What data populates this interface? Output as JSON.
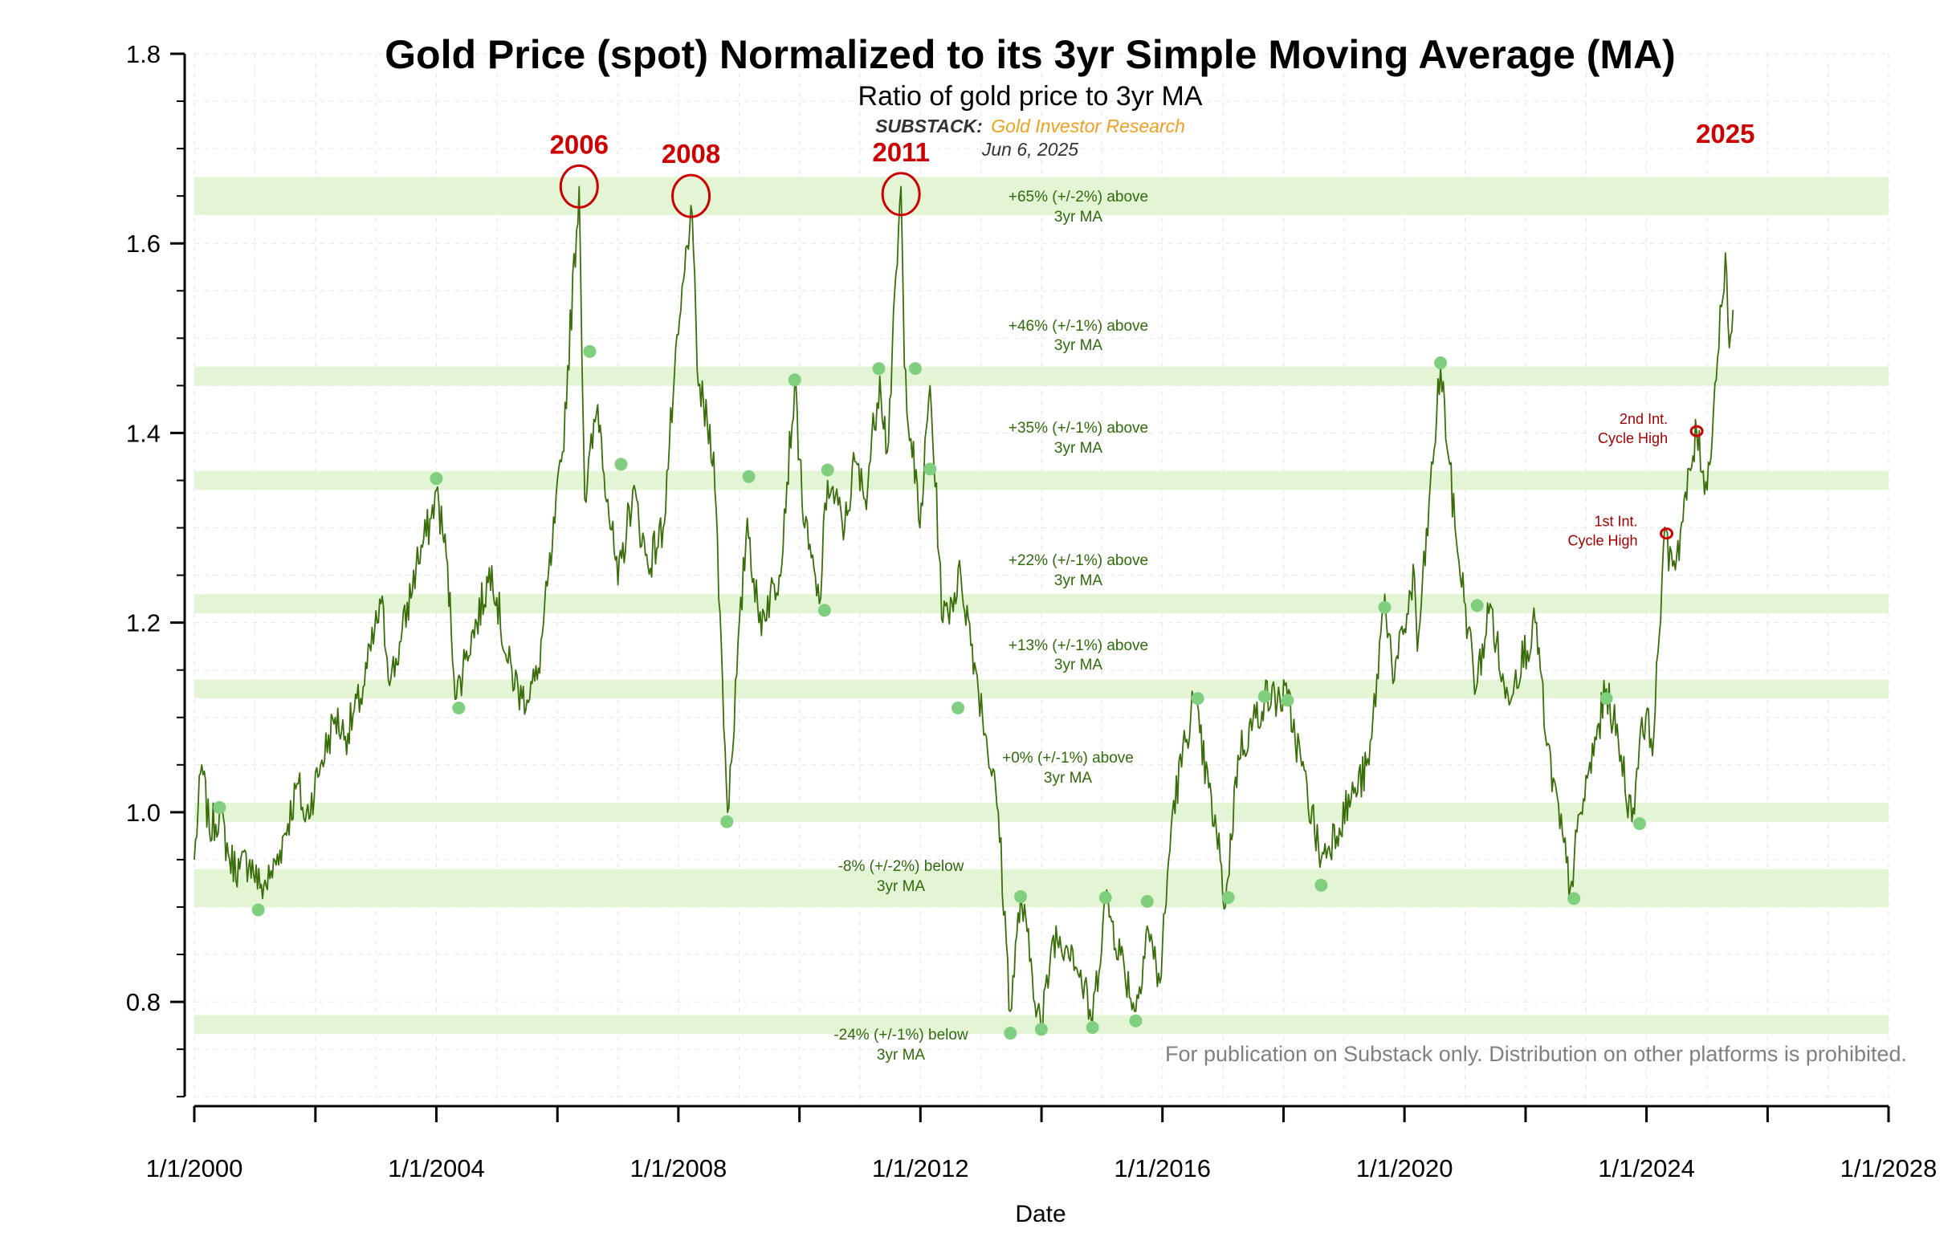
{
  "chart_data": {
    "type": "line",
    "title": "Gold Price (spot) Normalized to its 3yr Simple Moving Average (MA)",
    "subtitle": "Ratio of gold price to 3yr MA",
    "source_label": "SUBSTACK:",
    "source_name": "Gold Investor Research",
    "date": "Jun 6, 2025",
    "xlabel": "Date",
    "ylabel": "",
    "xlim": [
      "2000-01-01",
      "2028-01-01"
    ],
    "ylim": [
      0.69,
      1.8
    ],
    "x_ticks": [
      "1/1/2000",
      "1/1/2004",
      "1/1/2008",
      "1/1/2012",
      "1/1/2016",
      "1/1/2020",
      "1/1/2024",
      "1/1/2028"
    ],
    "y_ticks": [
      "0.8",
      "1.0",
      "1.2",
      "1.4",
      "1.6",
      "1.8"
    ],
    "grid": true,
    "line_color": "#3a6e0a",
    "band_color": "#e4f5d6",
    "marker_color": "#7fcf7f",
    "annotation_color": "#cc0000",
    "series": [
      {
        "points": [
          [
            "2000-01-01",
            0.95
          ],
          [
            "2000-02-15",
            1.05
          ],
          [
            "2000-04-01",
            0.98
          ],
          [
            "2000-06-01",
            1.0
          ],
          [
            "2000-08-01",
            0.95
          ],
          [
            "2000-10-01",
            0.94
          ],
          [
            "2000-12-01",
            0.95
          ],
          [
            "2001-02-01",
            0.92
          ],
          [
            "2001-04-01",
            0.93
          ],
          [
            "2001-06-01",
            0.96
          ],
          [
            "2001-09-20",
            1.03
          ],
          [
            "2001-11-01",
            0.99
          ],
          [
            "2002-02-01",
            1.05
          ],
          [
            "2002-05-01",
            1.1
          ],
          [
            "2002-07-01",
            1.08
          ],
          [
            "2002-10-01",
            1.12
          ],
          [
            "2003-02-01",
            1.22
          ],
          [
            "2003-04-01",
            1.14
          ],
          [
            "2003-06-01",
            1.18
          ],
          [
            "2003-09-01",
            1.26
          ],
          [
            "2003-12-01",
            1.31
          ],
          [
            "2004-01-01",
            1.34
          ],
          [
            "2004-03-01",
            1.27
          ],
          [
            "2004-05-01",
            1.12
          ],
          [
            "2004-07-01",
            1.17
          ],
          [
            "2004-09-01",
            1.2
          ],
          [
            "2004-12-01",
            1.26
          ],
          [
            "2005-03-01",
            1.16
          ],
          [
            "2005-06-01",
            1.12
          ],
          [
            "2005-09-01",
            1.14
          ],
          [
            "2005-12-01",
            1.28
          ],
          [
            "2006-02-01",
            1.38
          ],
          [
            "2006-05-12",
            1.66
          ],
          [
            "2006-06-15",
            1.33
          ],
          [
            "2006-09-01",
            1.43
          ],
          [
            "2006-11-01",
            1.33
          ],
          [
            "2007-01-01",
            1.24
          ],
          [
            "2007-04-01",
            1.34
          ],
          [
            "2007-07-01",
            1.26
          ],
          [
            "2007-10-01",
            1.3
          ],
          [
            "2007-12-01",
            1.44
          ],
          [
            "2008-03-17",
            1.64
          ],
          [
            "2008-05-01",
            1.45
          ],
          [
            "2008-08-01",
            1.38
          ],
          [
            "2008-10-24",
            1.0
          ],
          [
            "2009-02-20",
            1.31
          ],
          [
            "2009-05-01",
            1.2
          ],
          [
            "2009-09-01",
            1.25
          ],
          [
            "2009-12-03",
            1.45
          ],
          [
            "2010-02-01",
            1.3
          ],
          [
            "2010-05-01",
            1.22
          ],
          [
            "2010-06-20",
            1.35
          ],
          [
            "2010-10-01",
            1.3
          ],
          [
            "2010-12-01",
            1.37
          ],
          [
            "2011-02-01",
            1.33
          ],
          [
            "2011-05-01",
            1.46
          ],
          [
            "2011-06-15",
            1.38
          ],
          [
            "2011-09-06",
            1.66
          ],
          [
            "2011-09-26",
            1.47
          ],
          [
            "2011-12-29",
            1.3
          ],
          [
            "2012-02-28",
            1.45
          ],
          [
            "2012-05-16",
            1.2
          ],
          [
            "2012-09-01",
            1.25
          ],
          [
            "2012-12-01",
            1.15
          ],
          [
            "2013-04-15",
            1.0
          ],
          [
            "2013-06-27",
            0.79
          ],
          [
            "2013-08-28",
            0.91
          ],
          [
            "2013-12-31",
            0.77
          ],
          [
            "2014-03-14",
            0.87
          ],
          [
            "2014-07-01",
            0.86
          ],
          [
            "2014-11-05",
            0.78
          ],
          [
            "2015-01-22",
            0.91
          ],
          [
            "2015-07-24",
            0.79
          ],
          [
            "2015-10-01",
            0.88
          ],
          [
            "2015-12-17",
            0.82
          ],
          [
            "2016-03-01",
            1.0
          ],
          [
            "2016-07-06",
            1.12
          ],
          [
            "2016-12-15",
            0.95
          ],
          [
            "2017-01-15",
            0.9
          ],
          [
            "2017-04-01",
            1.06
          ],
          [
            "2017-09-08",
            1.12
          ],
          [
            "2018-01-25",
            1.12
          ],
          [
            "2018-08-16",
            0.95
          ],
          [
            "2019-03-01",
            1.02
          ],
          [
            "2019-06-01",
            1.05
          ],
          [
            "2019-09-04",
            1.23
          ],
          [
            "2019-11-01",
            1.14
          ],
          [
            "2020-03-01",
            1.25
          ],
          [
            "2020-03-19",
            1.17
          ],
          [
            "2020-08-06",
            1.47
          ],
          [
            "2020-11-01",
            1.3
          ],
          [
            "2021-03-08",
            1.13
          ],
          [
            "2021-06-01",
            1.22
          ],
          [
            "2021-09-01",
            1.12
          ],
          [
            "2022-03-08",
            1.2
          ],
          [
            "2022-05-01",
            1.08
          ],
          [
            "2022-09-28",
            0.92
          ],
          [
            "2022-12-01",
            1.0
          ],
          [
            "2023-05-04",
            1.13
          ],
          [
            "2023-08-01",
            1.06
          ],
          [
            "2023-10-05",
            0.99
          ],
          [
            "2023-12-04",
            1.1
          ],
          [
            "2024-02-14",
            1.08
          ],
          [
            "2024-04-12",
            1.28
          ],
          [
            "2024-07-01",
            1.27
          ],
          [
            "2024-10-30",
            1.4
          ],
          [
            "2025-01-01",
            1.34
          ],
          [
            "2025-04-21",
            1.59
          ],
          [
            "2025-05-15",
            1.49
          ],
          [
            "2025-06-06",
            1.53
          ]
        ]
      }
    ],
    "bands": [
      {
        "center": 1.65,
        "half_width": 0.02,
        "label": [
          "+65% (+/-2%) above",
          "3yr MA"
        ]
      },
      {
        "center": 1.46,
        "half_width": 0.01,
        "label": [
          "+46% (+/-1%) above",
          "3yr MA"
        ]
      },
      {
        "center": 1.35,
        "half_width": 0.01,
        "label": [
          "+35% (+/-1%) above",
          "3yr MA"
        ]
      },
      {
        "center": 1.22,
        "half_width": 0.01,
        "label": [
          "+22% (+/-1%) above",
          "3yr MA"
        ]
      },
      {
        "center": 1.13,
        "half_width": 0.01,
        "label": [
          "+13% (+/-1%) above",
          "3yr MA"
        ]
      },
      {
        "center": 1.0,
        "half_width": 0.01,
        "label": [
          "+0% (+/-1%) above",
          "3yr MA"
        ]
      },
      {
        "center": 0.92,
        "half_width": 0.02,
        "label": [
          "-8% (+/-2%) below",
          "3yr MA"
        ]
      },
      {
        "center": 0.776,
        "half_width": 0.01,
        "label": [
          "-24% (+/-1%) below",
          "3yr MA"
        ]
      }
    ],
    "markers": [
      [
        "2000-06-01",
        1.005
      ],
      [
        "2001-01-21",
        0.897
      ],
      [
        "2004-01-01",
        1.352
      ],
      [
        "2004-05-15",
        1.11
      ],
      [
        "2006-07-15",
        1.486
      ],
      [
        "2007-01-20",
        1.367
      ],
      [
        "2008-10-20",
        0.99
      ],
      [
        "2009-03-01",
        1.354
      ],
      [
        "2009-12-03",
        1.456
      ],
      [
        "2010-06-01",
        1.213
      ],
      [
        "2010-06-20",
        1.361
      ],
      [
        "2011-04-25",
        1.468
      ],
      [
        "2011-12-01",
        1.468
      ],
      [
        "2012-02-28",
        1.362
      ],
      [
        "2012-08-15",
        1.11
      ],
      [
        "2013-06-27",
        0.767
      ],
      [
        "2013-08-28",
        0.911
      ],
      [
        "2013-12-31",
        0.771
      ],
      [
        "2014-11-05",
        0.773
      ],
      [
        "2015-01-22",
        0.91
      ],
      [
        "2015-07-24",
        0.78
      ],
      [
        "2015-10-01",
        0.906
      ],
      [
        "2016-08-01",
        1.12
      ],
      [
        "2017-02-01",
        0.91
      ],
      [
        "2017-09-08",
        1.122
      ],
      [
        "2018-01-25",
        1.118
      ],
      [
        "2018-08-16",
        0.923
      ],
      [
        "2019-09-04",
        1.216
      ],
      [
        "2020-08-06",
        1.474
      ],
      [
        "2021-03-15",
        1.218
      ],
      [
        "2022-10-20",
        0.909
      ],
      [
        "2023-05-04",
        1.12
      ],
      [
        "2023-11-20",
        0.988
      ]
    ],
    "annotations": {
      "peaks": [
        {
          "label": "2006",
          "x": "2006-05-12",
          "y": 1.66
        },
        {
          "label": "2008",
          "x": "2008-03-17",
          "y": 1.65
        },
        {
          "label": "2011",
          "x": "2011-09-06",
          "y": 1.652
        }
      ],
      "label_2025": {
        "label": "2025",
        "x": "2025-04-21"
      },
      "cycle_highs": [
        {
          "label": [
            "1st Int.",
            "Cycle High"
          ],
          "x": "2024-05-01",
          "y": 1.294
        },
        {
          "label": [
            "2nd Int.",
            "Cycle High"
          ],
          "x": "2024-10-30",
          "y": 1.402
        }
      ]
    },
    "watermark": "For publication on Substack only. Distribution on other platforms is prohibited."
  }
}
